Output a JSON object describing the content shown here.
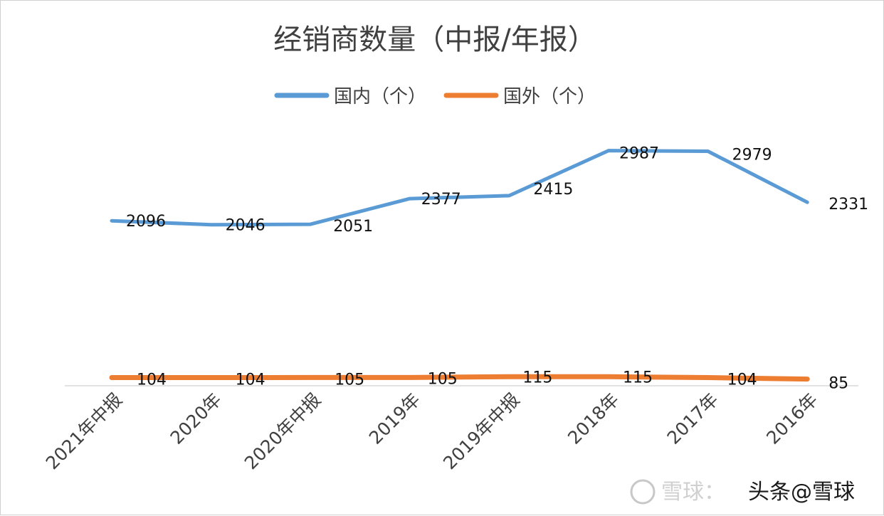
{
  "chart_data": {
    "type": "line",
    "title": "经销商数量（中报/年报）",
    "categories": [
      "2021年中报",
      "2020年",
      "2020年中报",
      "2019年",
      "2019年中报",
      "2018年",
      "2017年",
      "2016年"
    ],
    "series": [
      {
        "name": "国内（个）",
        "color": "#5b9bd5",
        "values": [
          2096,
          2046,
          2051,
          2377,
          2415,
          2987,
          2979,
          2331
        ]
      },
      {
        "name": "国外（个）",
        "color": "#ed7d31",
        "values": [
          104,
          104,
          105,
          105,
          115,
          115,
          104,
          85
        ]
      }
    ],
    "ylim": [
      0,
      3300
    ],
    "grid": false,
    "legend": "top-center",
    "data_labels": true
  },
  "watermark": {
    "left_text": "雪球：",
    "right_text": "头条@雪球"
  }
}
